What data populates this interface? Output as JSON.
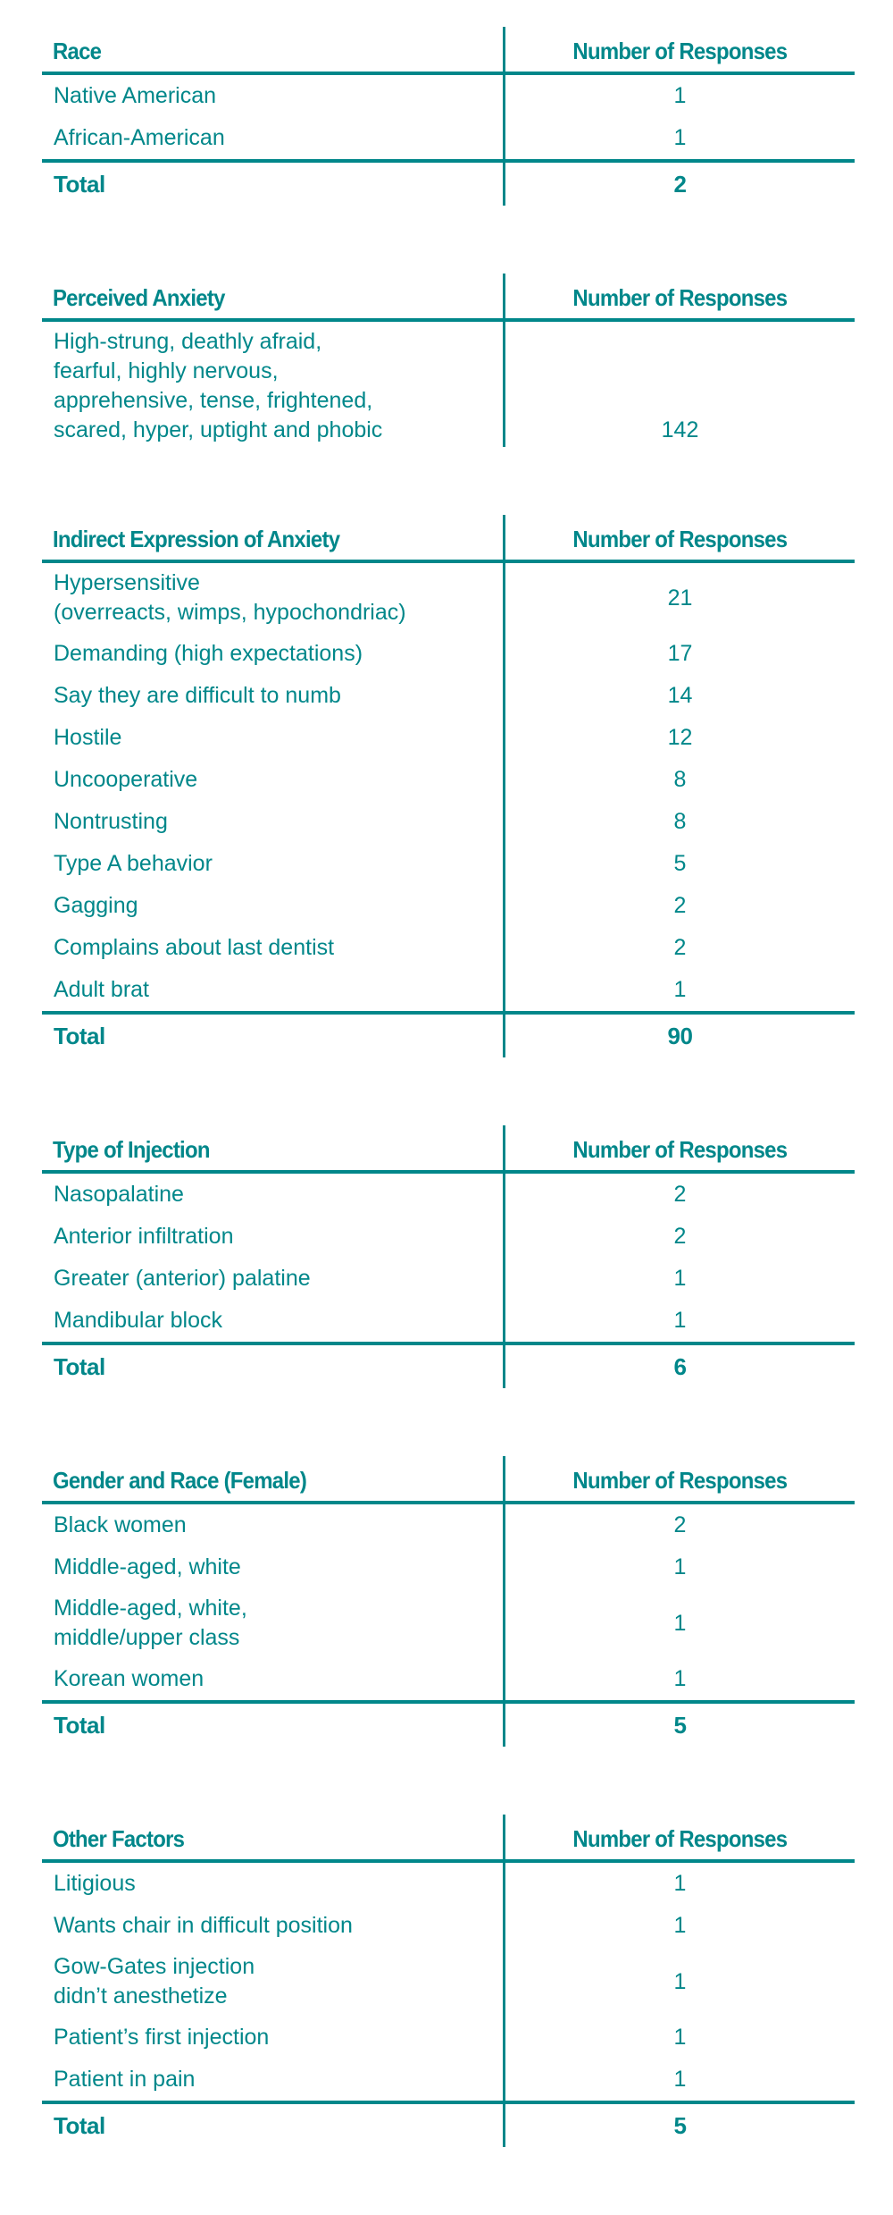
{
  "column_header": "Number of Responses",
  "total_label": "Total",
  "tables": [
    {
      "title": "Race",
      "rows": [
        {
          "label": [
            "Native American"
          ],
          "value": "1"
        },
        {
          "label": [
            "African-American"
          ],
          "value": "1"
        }
      ],
      "total": "2"
    },
    {
      "title": "Perceived Anxiety",
      "rows": [
        {
          "label": [
            "High-strung, deathly afraid,",
            "fearful, highly nervous,",
            "apprehensive, tense, frightened,",
            "scared, hyper, uptight and phobic"
          ],
          "value": "142"
        }
      ],
      "total": null
    },
    {
      "title": "Indirect Expression of Anxiety",
      "rows": [
        {
          "label": [
            "Hypersensitive",
            "(overreacts, wimps, hypochondriac)"
          ],
          "value": "21"
        },
        {
          "label": [
            "Demanding (high expectations)"
          ],
          "value": "17"
        },
        {
          "label": [
            "Say they are difficult to numb"
          ],
          "value": "14"
        },
        {
          "label": [
            "Hostile"
          ],
          "value": "12"
        },
        {
          "label": [
            "Uncooperative"
          ],
          "value": "8"
        },
        {
          "label": [
            "Nontrusting"
          ],
          "value": "8"
        },
        {
          "label": [
            "Type A behavior"
          ],
          "value": "5"
        },
        {
          "label": [
            "Gagging"
          ],
          "value": "2"
        },
        {
          "label": [
            "Complains about last dentist"
          ],
          "value": "2"
        },
        {
          "label": [
            "Adult brat"
          ],
          "value": "1"
        }
      ],
      "total": "90"
    },
    {
      "title": "Type of Injection",
      "rows": [
        {
          "label": [
            "Nasopalatine"
          ],
          "value": "2"
        },
        {
          "label": [
            "Anterior infiltration"
          ],
          "value": "2"
        },
        {
          "label": [
            "Greater (anterior) palatine"
          ],
          "value": "1"
        },
        {
          "label": [
            "Mandibular block"
          ],
          "value": "1"
        }
      ],
      "total": "6"
    },
    {
      "title": "Gender and Race (Female)",
      "rows": [
        {
          "label": [
            "Black women"
          ],
          "value": "2"
        },
        {
          "label": [
            "Middle-aged, white"
          ],
          "value": "1"
        },
        {
          "label": [
            "Middle-aged, white,",
            "middle/upper class"
          ],
          "value": "1"
        },
        {
          "label": [
            "Korean women"
          ],
          "value": "1"
        }
      ],
      "total": "5"
    },
    {
      "title": "Other Factors",
      "rows": [
        {
          "label": [
            "Litigious"
          ],
          "value": "1"
        },
        {
          "label": [
            "Wants chair in difficult position"
          ],
          "value": "1"
        },
        {
          "label": [
            "Gow-Gates injection",
            "didn’t anesthetize"
          ],
          "value": "1"
        },
        {
          "label": [
            "Patient’s first injection"
          ],
          "value": "1"
        },
        {
          "label": [
            "Patient in pain"
          ],
          "value": "1"
        }
      ],
      "total": "5"
    }
  ]
}
